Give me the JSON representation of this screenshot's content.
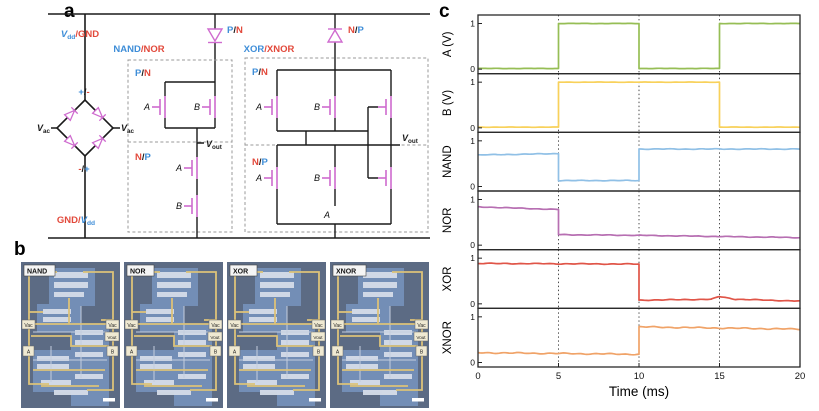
{
  "panel_a": {
    "letter": "a",
    "colors": {
      "blue": "#3f8ed8",
      "red": "#e2493b",
      "dark": "#1a1a1a",
      "magenta": "#cf6bcf"
    },
    "labels": {
      "vdd_gnd": [
        {
          "t": "V",
          "c": "blue",
          "i": true
        },
        {
          "t": "dd",
          "c": "blue",
          "sub": true
        },
        {
          "t": "/",
          "c": "red"
        },
        {
          "t": "GND",
          "c": "red"
        }
      ],
      "gnd_vdd": [
        {
          "t": "GND",
          "c": "red"
        },
        {
          "t": "/",
          "c": "red"
        },
        {
          "t": "V",
          "c": "blue",
          "i": true
        },
        {
          "t": "dd",
          "c": "blue",
          "sub": true
        }
      ],
      "plus_minus": [
        {
          "t": "+",
          "c": "blue"
        },
        {
          "t": "/",
          "c": "dark"
        },
        {
          "t": "-",
          "c": "red"
        }
      ],
      "minus_plus": [
        {
          "t": "-",
          "c": "red"
        },
        {
          "t": "/",
          "c": "dark"
        },
        {
          "t": "+",
          "c": "blue"
        }
      ],
      "vac": [
        {
          "t": "V",
          "c": "dark",
          "i": true
        },
        {
          "t": "ac",
          "c": "dark",
          "sub": true
        }
      ],
      "vout": [
        {
          "t": "V",
          "c": "dark",
          "i": true
        },
        {
          "t": "out",
          "c": "dark",
          "sub": true
        }
      ],
      "nand_nor": [
        {
          "t": "NAND",
          "c": "blue"
        },
        {
          "t": "/",
          "c": "red"
        },
        {
          "t": "NOR",
          "c": "red"
        }
      ],
      "xor_xnor": [
        {
          "t": "XOR",
          "c": "blue"
        },
        {
          "t": "/",
          "c": "red"
        },
        {
          "t": "XNOR",
          "c": "red"
        }
      ],
      "pn": [
        {
          "t": "P",
          "c": "blue"
        },
        {
          "t": "/",
          "c": "dark"
        },
        {
          "t": "N",
          "c": "red"
        }
      ],
      "np": [
        {
          "t": "N",
          "c": "red"
        },
        {
          "t": "/",
          "c": "dark"
        },
        {
          "t": "P",
          "c": "blue"
        }
      ]
    },
    "gates_nand": [
      "A",
      "B",
      "A",
      "B"
    ],
    "gates_xor": [
      "A",
      "B",
      "A",
      "B",
      "A"
    ]
  },
  "panel_b": {
    "letter": "b",
    "cards": [
      {
        "tag": "NAND"
      },
      {
        "tag": "NOR"
      },
      {
        "tag": "XOR"
      },
      {
        "tag": "XNOR"
      }
    ],
    "side_labels": {
      "left_top": "Vac",
      "left_bottom": "A",
      "right_top": "Vac",
      "right_mid": "Vout",
      "right_bottom": "B"
    }
  },
  "panel_c": {
    "letter": "c"
  },
  "chart_data": {
    "type": "line",
    "xlabel": "Time (ms)",
    "xlim": [
      0,
      20
    ],
    "xticks": [
      0,
      5,
      10,
      15,
      20
    ],
    "gridlines_x": [
      5,
      10,
      15
    ],
    "yticks": [
      1,
      0
    ],
    "ylim": [
      0,
      1
    ],
    "legend": "none",
    "subplots": [
      {
        "label": "A (V)",
        "color": "#96be55",
        "noise": 0.004,
        "points": [
          [
            0,
            0.015
          ],
          [
            5,
            0.015
          ],
          [
            5,
            1.0
          ],
          [
            10,
            1.0
          ],
          [
            10,
            0.015
          ],
          [
            15,
            0.015
          ],
          [
            15,
            1.0
          ],
          [
            20,
            1.0
          ]
        ]
      },
      {
        "label": "B (V)",
        "color": "#f8d15a",
        "noise": 0.004,
        "points": [
          [
            0,
            0.015
          ],
          [
            5,
            0.015
          ],
          [
            5,
            1.0
          ],
          [
            15,
            1.0
          ],
          [
            15,
            0.015
          ],
          [
            20,
            0.015
          ]
        ]
      },
      {
        "label": "NAND",
        "color": "#90c0e6",
        "noise": 0.008,
        "points": [
          [
            0,
            0.69
          ],
          [
            5,
            0.72
          ],
          [
            5,
            0.13
          ],
          [
            10,
            0.13
          ],
          [
            10,
            0.82
          ],
          [
            20,
            0.82
          ]
        ]
      },
      {
        "label": "NOR",
        "color": "#b76fb2",
        "noise": 0.008,
        "points": [
          [
            0,
            0.84
          ],
          [
            5,
            0.78
          ],
          [
            5,
            0.23
          ],
          [
            10,
            0.215
          ],
          [
            15,
            0.19
          ],
          [
            20,
            0.165
          ]
        ]
      },
      {
        "label": "XOR",
        "color": "#e05548",
        "noise": 0.009,
        "points": [
          [
            0,
            0.885
          ],
          [
            10,
            0.87
          ],
          [
            10,
            0.08
          ],
          [
            14.5,
            0.1
          ],
          [
            15,
            0.16
          ],
          [
            16,
            0.1
          ],
          [
            20,
            0.06
          ]
        ]
      },
      {
        "label": "XNOR",
        "color": "#f0a368",
        "noise": 0.014,
        "points": [
          [
            0,
            0.215
          ],
          [
            10,
            0.18
          ],
          [
            10,
            0.78
          ],
          [
            20,
            0.73
          ]
        ]
      }
    ]
  }
}
